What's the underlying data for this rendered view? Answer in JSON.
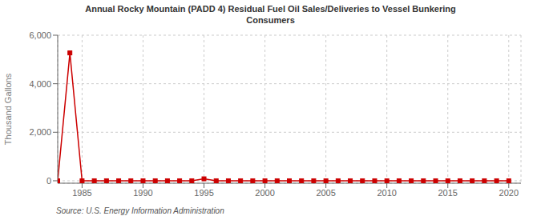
{
  "chart_data": {
    "type": "line",
    "title": "Annual Rocky Mountain (PADD 4) Residual Fuel Oil Sales/Deliveries to Vessel Bunkering\nConsumers",
    "ylabel": "Thousand Gallons",
    "annotations": [
      "Source: U.S. Energy Information Administration"
    ],
    "x": [
      1983,
      1984,
      1985,
      1986,
      1987,
      1988,
      1989,
      1990,
      1991,
      1992,
      1993,
      1994,
      1995,
      1996,
      1997,
      1998,
      1999,
      2000,
      2001,
      2002,
      2003,
      2004,
      2005,
      2006,
      2007,
      2008,
      2009,
      2010,
      2011,
      2012,
      2013,
      2014,
      2015,
      2016,
      2017,
      2018,
      2019,
      2020
    ],
    "values": [
      0,
      5270,
      0,
      0,
      0,
      0,
      0,
      0,
      0,
      0,
      0,
      0,
      80,
      0,
      0,
      0,
      0,
      0,
      0,
      0,
      0,
      0,
      0,
      0,
      0,
      0,
      0,
      0,
      0,
      0,
      0,
      0,
      0,
      0,
      0,
      0,
      0,
      0
    ],
    "color": "#cc0000",
    "marker": "square",
    "line_style": "solid",
    "xlim": [
      1983,
      2021
    ],
    "ylim": [
      -100,
      6000
    ],
    "xticks": [
      1985,
      1990,
      1995,
      2000,
      2005,
      2010,
      2015,
      2020
    ],
    "yticks": [
      0,
      {
        "value": 2000,
        "label": "2,000"
      },
      {
        "value": 4000,
        "label": "4,000"
      },
      {
        "value": 6000,
        "label": "6,000"
      }
    ],
    "grid": true
  }
}
